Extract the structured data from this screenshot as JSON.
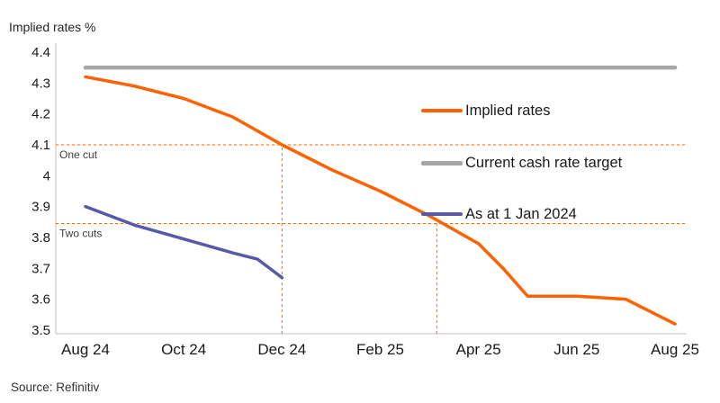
{
  "header": {
    "axis_title": "Implied rates %"
  },
  "footer": {
    "source": "Source: Refinitiv"
  },
  "colors": {
    "orange": "#FF6200",
    "gray": "#A6A6A6",
    "purple": "#585AA8",
    "axis": "#BFBFBF",
    "text": "#1A1A1A",
    "muted": "#404040"
  },
  "chart_data": {
    "type": "line",
    "title": "Implied rates %",
    "xlabel": "",
    "ylabel": "Implied rates %",
    "xlim": [
      0,
      12
    ],
    "ylim": [
      3.5,
      4.4
    ],
    "grid": false,
    "legend_position": "inside-right",
    "x_tick_labels": [
      "Aug 24",
      "Oct 24",
      "Dec 24",
      "Feb 25",
      "Apr 25",
      "Jun 25",
      "Aug 25"
    ],
    "x_tick_positions": [
      0,
      2,
      4,
      6,
      8,
      10,
      12
    ],
    "y_ticks": [
      {
        "v": 3.5,
        "label": "3.5"
      },
      {
        "v": 3.6,
        "label": "3.6"
      },
      {
        "v": 3.7,
        "label": "3.7"
      },
      {
        "v": 3.8,
        "label": "3.8"
      },
      {
        "v": 3.9,
        "label": "3.9"
      },
      {
        "v": 4.0,
        "label": "4"
      },
      {
        "v": 4.1,
        "label": "4.1"
      },
      {
        "v": 4.2,
        "label": "4.2"
      },
      {
        "v": 4.3,
        "label": "4.3"
      },
      {
        "v": 4.4,
        "label": "4.4"
      }
    ],
    "series": [
      {
        "name": "Implied rates",
        "color": "#FF6200",
        "width": 3.5,
        "points": [
          [
            0,
            4.32
          ],
          [
            1,
            4.29
          ],
          [
            2,
            4.25
          ],
          [
            3,
            4.19
          ],
          [
            4,
            4.1
          ],
          [
            5,
            4.02
          ],
          [
            6,
            3.95
          ],
          [
            7,
            3.87
          ],
          [
            8,
            3.78
          ],
          [
            8.5,
            3.7
          ],
          [
            9,
            3.61
          ],
          [
            10,
            3.61
          ],
          [
            11,
            3.6
          ],
          [
            12,
            3.52
          ]
        ]
      },
      {
        "name": "Current cash rate target",
        "color": "#A6A6A6",
        "width": 4.5,
        "points": [
          [
            0,
            4.35
          ],
          [
            12,
            4.35
          ]
        ]
      },
      {
        "name": "As at 1 Jan 2024",
        "color": "#585AA8",
        "width": 3.5,
        "points": [
          [
            0,
            3.9
          ],
          [
            1,
            3.84
          ],
          [
            2,
            3.795
          ],
          [
            3,
            3.75
          ],
          [
            3.5,
            3.73
          ],
          [
            4,
            3.67
          ]
        ]
      }
    ],
    "annotations": {
      "h_lines": [
        {
          "value": 4.1,
          "label": "One cut"
        },
        {
          "value": 3.845,
          "label": "Two cuts"
        }
      ],
      "v_lines": [
        {
          "x": 4,
          "to_value": 4.1
        },
        {
          "x": 7.15,
          "to_value": 3.845
        }
      ]
    }
  }
}
